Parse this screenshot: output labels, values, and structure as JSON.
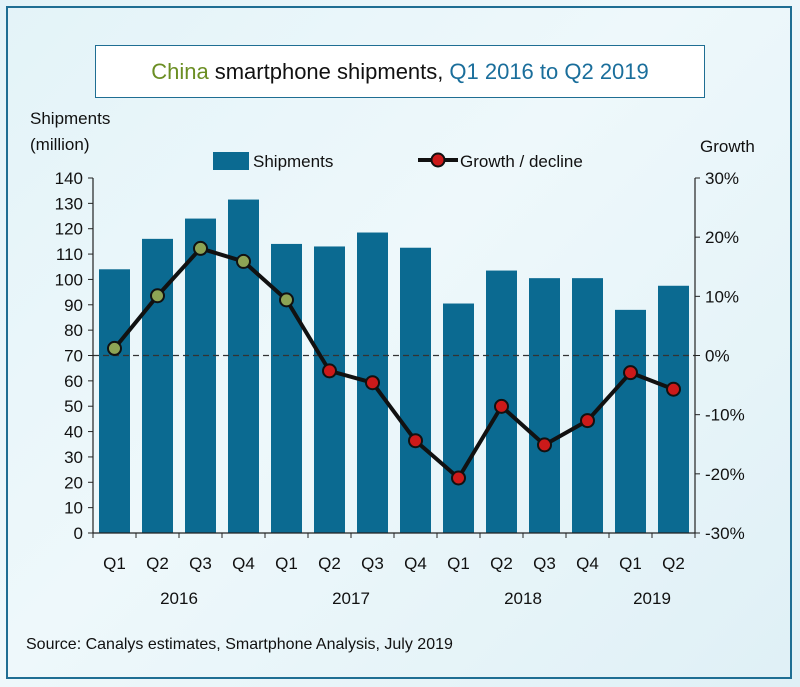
{
  "title": {
    "part1": "China",
    "part2": "smartphone  shipments,",
    "part3": "Q1 2016 to Q2 2019"
  },
  "source": "Source:  Canalys estimates, Smartphone  Analysis, July 2019",
  "chart_data": {
    "type": "bar+line",
    "title": "China smartphone  shipments, Q1 2016 to Q2 2019",
    "y_left_label_line1": "Shipments",
    "y_left_label_line2": "(million)",
    "y_right_label": "Growth",
    "legend": {
      "bars": "Shipments",
      "line": "Growth / decline",
      "placement": "top"
    },
    "categories": [
      "Q1",
      "Q2",
      "Q3",
      "Q4",
      "Q1",
      "Q2",
      "Q3",
      "Q4",
      "Q1",
      "Q2",
      "Q3",
      "Q4",
      "Q1",
      "Q2"
    ],
    "years": [
      {
        "label": "2016",
        "from": 0,
        "to": 3
      },
      {
        "label": "2017",
        "from": 4,
        "to": 7
      },
      {
        "label": "2018",
        "from": 8,
        "to": 11
      },
      {
        "label": "2019",
        "from": 12,
        "to": 13
      }
    ],
    "series": [
      {
        "name": "Shipments",
        "axis": "left",
        "values": [
          104,
          116,
          124,
          131.5,
          114,
          113,
          118.5,
          112.5,
          90.5,
          103.5,
          100.5,
          100.5,
          88,
          97.5
        ]
      },
      {
        "name": "Growth / decline",
        "axis": "right",
        "unit": "%",
        "values": [
          1.2,
          10.1,
          18.1,
          15.9,
          9.4,
          -2.6,
          -4.6,
          -14.4,
          -20.7,
          -8.6,
          -15.1,
          -11.0,
          -2.9,
          -5.7
        ]
      }
    ],
    "ylim_left": [
      0,
      140
    ],
    "yticks_left": [
      0,
      10,
      20,
      30,
      40,
      50,
      60,
      70,
      80,
      90,
      100,
      110,
      120,
      130,
      140
    ],
    "ylim_right": [
      -30,
      30
    ],
    "yticks_right": [
      "-30%",
      "-20%",
      "-10%",
      "0%",
      "10%",
      "20%",
      "30%"
    ],
    "yticks_right_values": [
      -30,
      -20,
      -10,
      0,
      10,
      20,
      30
    ],
    "colors": {
      "bar": "#0b6a91",
      "line": "#111111",
      "marker_neg": "#cc1a1a",
      "marker_pos": "#8da455",
      "zero_line": "#333333"
    }
  }
}
